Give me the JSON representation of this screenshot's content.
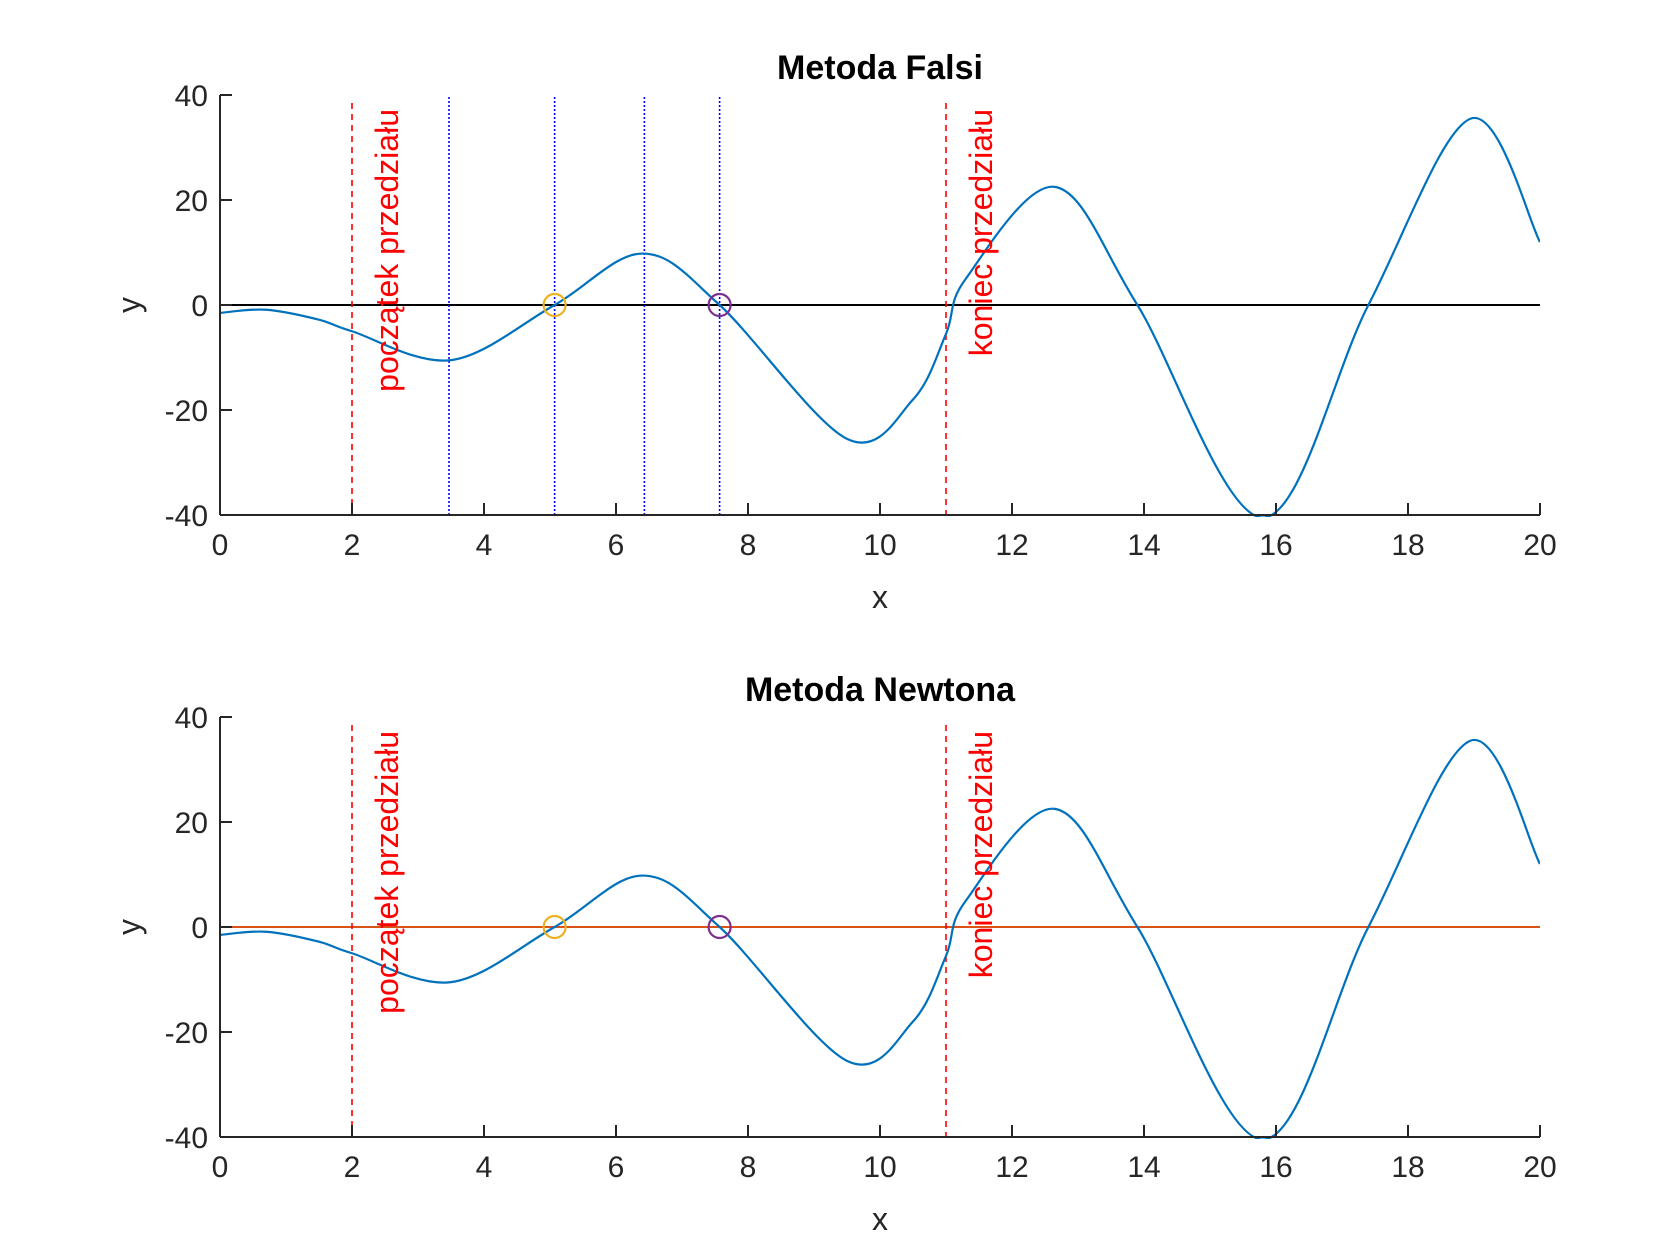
{
  "colors": {
    "curve": "#0072BD",
    "boundary": "#FF0000",
    "iteration": "#0000FF",
    "zero_line_falsi": "#000000",
    "zero_line_newton": "#D95319",
    "root_1": "#EDB120",
    "root_2": "#7E2F8E",
    "axis": "#262626"
  },
  "chart_data": [
    {
      "type": "line",
      "title": "Metoda Falsi",
      "xlabel": "x",
      "ylabel": "y",
      "xlim": [
        0,
        20
      ],
      "ylim": [
        -40,
        40
      ],
      "xticks": [
        "0",
        "2",
        "4",
        "6",
        "8",
        "10",
        "12",
        "14",
        "16",
        "18",
        "20"
      ],
      "yticks": [
        "-40",
        "-20",
        "0",
        "20",
        "40"
      ],
      "grid": false,
      "series": [
        {
          "x": [
            0,
            0.7,
            1.5,
            2,
            3.5,
            5.07,
            6.4,
            7.57,
            9.5,
            10.5,
            11.0,
            11.3,
            12.65,
            13.9,
            15.8,
            17.4,
            18.95,
            20
          ],
          "y": [
            -1.5,
            -0.9,
            -2.8,
            -5,
            -10.5,
            0,
            9.8,
            0,
            -25.5,
            -18,
            -5.5,
            5,
            22.5,
            0,
            -40.5,
            0,
            35.5,
            12
          ]
        }
      ],
      "boundaries": [
        {
          "x": 2,
          "label": "początek przedziału"
        },
        {
          "x": 11,
          "label": "koniec przedziału"
        }
      ],
      "iteration_lines": [
        3.47,
        5.07,
        6.43,
        7.57
      ],
      "roots": [
        {
          "x": 5.07,
          "y": 0
        },
        {
          "x": 7.57,
          "y": 0
        }
      ]
    },
    {
      "type": "line",
      "title": "Metoda Newtona",
      "xlabel": "x",
      "ylabel": "y",
      "xlim": [
        0,
        20
      ],
      "ylim": [
        -40,
        40
      ],
      "xticks": [
        "0",
        "2",
        "4",
        "6",
        "8",
        "10",
        "12",
        "14",
        "16",
        "18",
        "20"
      ],
      "yticks": [
        "-40",
        "-20",
        "0",
        "20",
        "40"
      ],
      "grid": false,
      "series": [
        {
          "x": [
            0,
            0.7,
            1.5,
            2,
            3.5,
            5.07,
            6.4,
            7.57,
            9.5,
            10.5,
            11.0,
            11.3,
            12.65,
            13.9,
            15.8,
            17.4,
            18.95,
            20
          ],
          "y": [
            -1.5,
            -0.9,
            -2.8,
            -5,
            -10.5,
            0,
            9.8,
            0,
            -25.5,
            -18,
            -5.5,
            5,
            22.5,
            0,
            -40.5,
            0,
            35.5,
            12
          ]
        }
      ],
      "boundaries": [
        {
          "x": 2,
          "label": "początek przedziału"
        },
        {
          "x": 11,
          "label": "koniec przedziału"
        }
      ],
      "iteration_lines": [],
      "roots": [
        {
          "x": 5.07,
          "y": 0
        },
        {
          "x": 7.57,
          "y": 0
        }
      ]
    }
  ]
}
